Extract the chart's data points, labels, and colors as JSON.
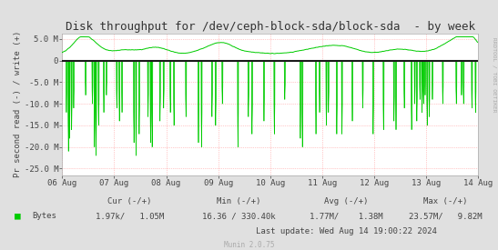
{
  "title": "Disk throughput for /dev/ceph-block-sda/block-sda  - by week",
  "ylabel": "Pr second read (-) / write (+)",
  "background_color": "#e0e0e0",
  "plot_background": "#ffffff",
  "grid_color": "#ff9999",
  "line_color": "#00cc00",
  "zero_line_color": "#1a1a1a",
  "yticks": [
    5000000,
    0,
    -5000000,
    -10000000,
    -15000000,
    -20000000,
    -25000000
  ],
  "ytick_labels": [
    "5.0 M",
    "0",
    "-5.0 M",
    "-10.0 M",
    "-15.0 M",
    "-20.0 M",
    "-25.0 M"
  ],
  "ylim": [
    -26500000,
    6200000
  ],
  "xlim_days": [
    0,
    8
  ],
  "xtick_positions": [
    0,
    1,
    2,
    3,
    4,
    5,
    6,
    7,
    8
  ],
  "xtick_labels": [
    "06 Aug",
    "07 Aug",
    "08 Aug",
    "09 Aug",
    "10 Aug",
    "11 Aug",
    "12 Aug",
    "13 Aug",
    "14 Aug"
  ],
  "legend_label": "Bytes",
  "legend_color": "#00cc00",
  "stats_cur": "Cur (-/+)",
  "stats_cur_val": "1.97k/   1.05M",
  "stats_min": "Min (-/+)",
  "stats_min_val": "16.36 / 330.40k",
  "stats_avg": "Avg (-/+)",
  "stats_avg_val": "1.77M/    1.38M",
  "stats_max": "Max (-/+)",
  "stats_max_val": "23.57M/   9.82M",
  "last_update": "Last update: Wed Aug 14 19:00:22 2024",
  "munin_version": "Munin 2.0.75",
  "rrdtool_label": "RRDTOOL / TOBI OETIKER",
  "title_fontsize": 9,
  "axis_fontsize": 6.5,
  "tick_fontsize": 6.5,
  "stats_fontsize": 6.5
}
